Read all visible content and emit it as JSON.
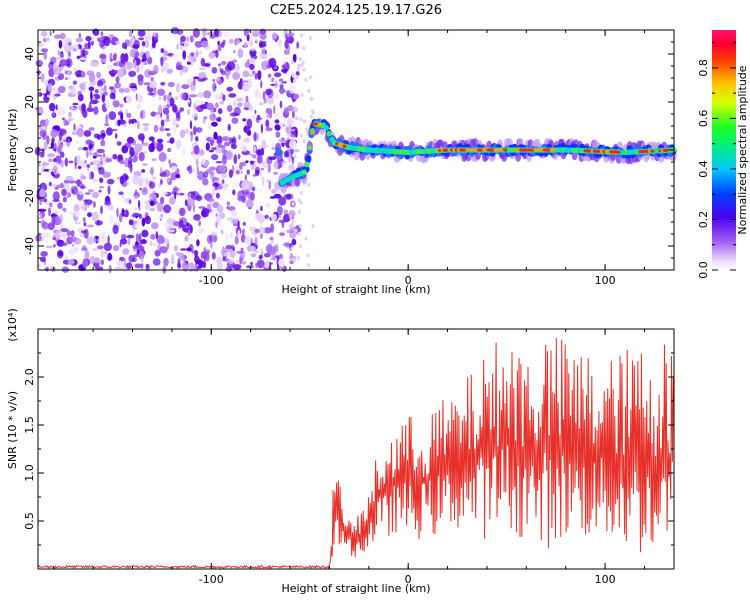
{
  "figure_title": "C2E5.2024.125.19.17.G26",
  "chart_data": [
    {
      "type": "heatmap",
      "title": "C2E5.2024.125.19.17.G26",
      "xlabel": "Height of straight line (km)",
      "ylabel": "Frequency (Hz)",
      "xlim": [
        -188,
        135
      ],
      "ylim": [
        -50,
        50
      ],
      "x_ticks": [
        -100,
        0,
        100
      ],
      "y_ticks": [
        -40,
        -20,
        0,
        20,
        40
      ],
      "grid": false,
      "colorbar": {
        "label": "Normalized spectral amplitude",
        "range": [
          0,
          0.95
        ],
        "ticks": [
          0.0,
          0.2,
          0.4,
          0.6,
          0.8
        ],
        "colormap": "rainbow (white-purple-blue-cyan-green-yellow-orange-red-magenta)"
      },
      "regions": {
        "noise_region_x": [
          -188,
          -60
        ],
        "signal_track": [
          {
            "x": -65,
            "y": -14
          },
          {
            "x": -58,
            "y": -11
          },
          {
            "x": -52,
            "y": -9
          },
          {
            "x": -48,
            "y": 11
          },
          {
            "x": -42,
            "y": 10
          },
          {
            "x": -38,
            "y": 3
          },
          {
            "x": -30,
            "y": 1
          },
          {
            "x": -20,
            "y": 0
          },
          {
            "x": 0,
            "y": -1
          },
          {
            "x": 20,
            "y": 0
          },
          {
            "x": 50,
            "y": 0
          },
          {
            "x": 80,
            "y": 0
          },
          {
            "x": 110,
            "y": -1
          },
          {
            "x": 135,
            "y": 0
          }
        ]
      }
    },
    {
      "type": "line",
      "xlabel": "Height of straight line (km)",
      "ylabel": "SNR (10 * v/v)",
      "y_multiplier": "(x10⁴)",
      "xlim": [
        -188,
        135
      ],
      "ylim": [
        0,
        2.5
      ],
      "x_ticks": [
        -100,
        0,
        100
      ],
      "y_ticks": [
        0.5,
        1.0,
        1.5,
        2.0
      ],
      "grid": false,
      "series": [
        {
          "color": "#e8302a",
          "envelope_x": [
            -188,
            -40,
            -38,
            -35,
            -30,
            -25,
            -20,
            -15,
            -10,
            -5,
            0,
            10,
            20,
            30,
            40,
            50,
            60,
            70,
            80,
            90,
            100,
            110,
            120,
            135
          ],
          "envelope_max": [
            0.04,
            0.05,
            0.9,
            1.0,
            0.5,
            0.6,
            0.8,
            1.3,
            1.4,
            1.6,
            1.6,
            1.7,
            1.8,
            2.0,
            2.3,
            2.5,
            2.3,
            2.5,
            2.4,
            2.3,
            2.2,
            2.3,
            2.4,
            2.4
          ],
          "envelope_min": [
            0.0,
            0.0,
            0.1,
            0.2,
            0.15,
            0.1,
            0.2,
            0.3,
            0.3,
            0.4,
            0.3,
            0.3,
            0.4,
            0.4,
            0.3,
            0.4,
            0.3,
            0.2,
            0.3,
            0.3,
            0.3,
            0.2,
            0.1,
            0.2
          ]
        }
      ]
    }
  ]
}
